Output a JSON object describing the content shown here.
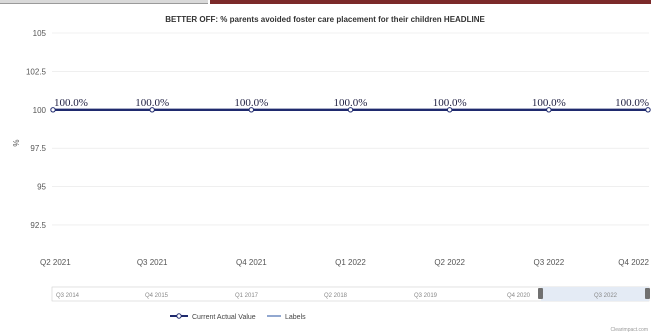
{
  "chart_data": {
    "type": "line",
    "title": "BETTER OFF: % parents avoided foster care placement for their children HEADLINE",
    "ylabel": "%",
    "xlabel": "",
    "ylim": [
      91,
      105
    ],
    "yticks": [
      92.5,
      95,
      97.5,
      100,
      102.5,
      105
    ],
    "ytick_labels": [
      "92.5",
      "95",
      "97.5",
      "100",
      "102.5",
      "105"
    ],
    "categories": [
      "Q2 2021",
      "Q3 2021",
      "Q4 2021",
      "Q1 2022",
      "Q2 2022",
      "Q3 2022",
      "Q4 2022"
    ],
    "series": [
      {
        "name": "Current Actual Value",
        "color": "#1f2a6e",
        "values": [
          100,
          100,
          100,
          100,
          100,
          100,
          100
        ],
        "labels": [
          "100.0%",
          "100.0%",
          "100.0%",
          "100.0%",
          "100.0%",
          "100.0%",
          "100.0%"
        ]
      },
      {
        "name": "Labels",
        "color": "#4a6fb0"
      }
    ],
    "grid": true,
    "legend": "bottom-center"
  },
  "navigator": {
    "labels": [
      "Q3 2014",
      "Q4 2015",
      "Q1 2017",
      "Q2 2018",
      "Q3 2019",
      "Q4 2020",
      "Q3 2022"
    ]
  },
  "credits": "Clearimpact.com"
}
